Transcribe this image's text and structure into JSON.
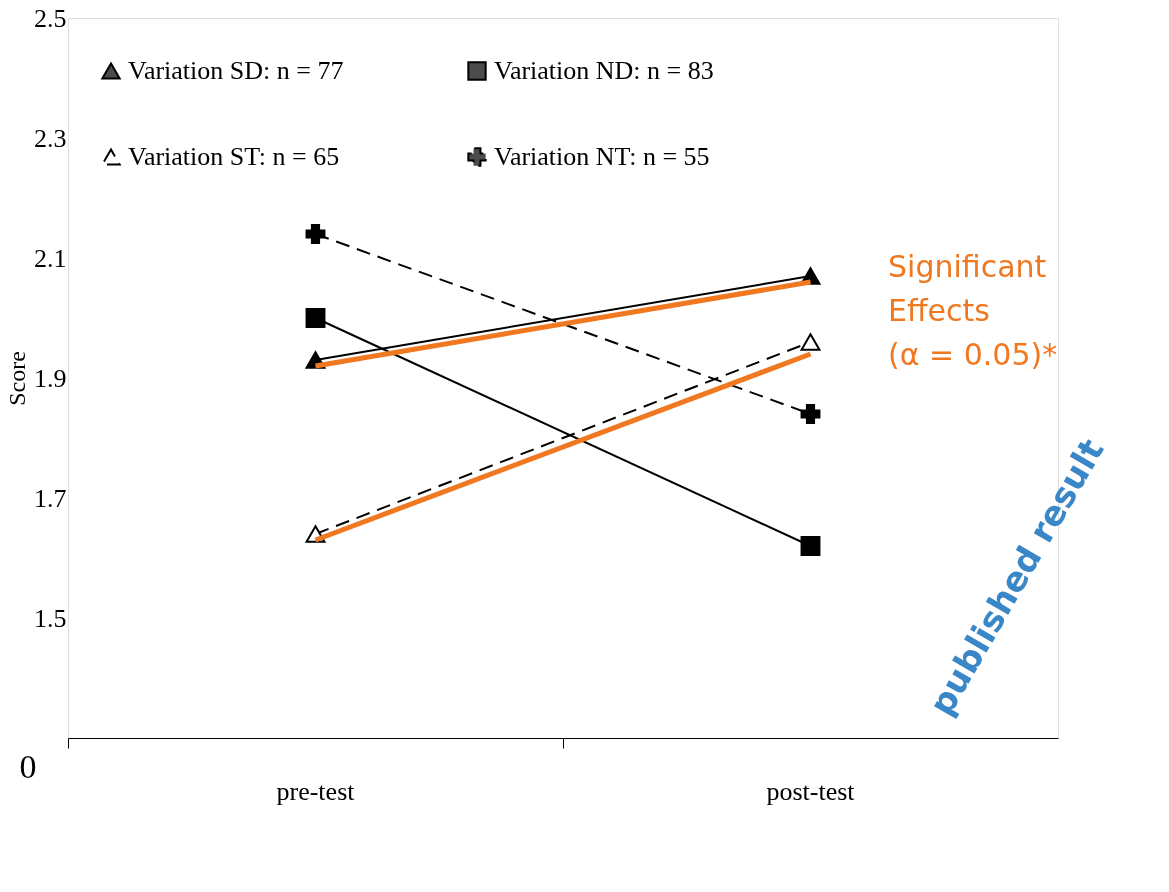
{
  "chart_data": {
    "type": "line",
    "ylabel": "Score",
    "categories": [
      "pre-test",
      "post-test"
    ],
    "series": [
      {
        "name": "Variation SD: n = 77",
        "color": "#000000",
        "values": [
          1.93,
          2.07
        ],
        "marker": "triangle",
        "line_style": "solid"
      },
      {
        "name": "Variation ST: n = 65",
        "color": "#000000",
        "values": [
          1.64,
          1.96
        ],
        "marker": "triangle_open",
        "line_style": "dashed"
      },
      {
        "name": "Variation ND: n = 83",
        "color": "#000000",
        "values": [
          2.0,
          1.62
        ],
        "marker": "square",
        "line_style": "solid"
      },
      {
        "name": "Variation NT: n = 55",
        "color": "#000000",
        "values": [
          2.14,
          1.84
        ],
        "marker": "cross",
        "line_style": "dashed"
      },
      {
        "color": "#f07820",
        "values": [
          1.92,
          2.06
        ],
        "line_style": "solid"
      },
      {
        "color": "#f07820",
        "values": [
          1.63,
          1.94
        ],
        "line_style": "solid"
      }
    ],
    "ylim": [
      1.3,
      2.5
    ],
    "yticks": [
      1.5,
      1.7,
      1.9,
      2.1,
      2.3,
      2.5
    ],
    "grid": false,
    "legend": "top",
    "annotations": [
      "Significant\nEffects\n(α = 0.05)*",
      "published result",
      "0"
    ]
  }
}
